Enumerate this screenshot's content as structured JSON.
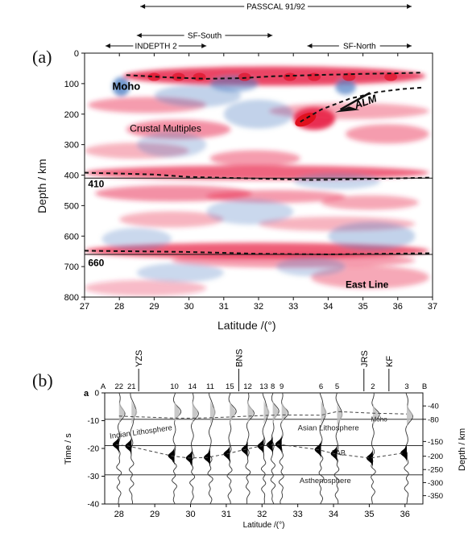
{
  "panel_a": {
    "label": "(a)",
    "segments": [
      {
        "label": "PASSCAL 91/92",
        "from_lat": 28.6,
        "to_lat": 36.4
      },
      {
        "label": "SF-South",
        "from_lat": 28.5,
        "to_lat": 32.4
      },
      {
        "label": "INDEPTH 2",
        "from_lat": 27.6,
        "to_lat": 30.5
      },
      {
        "label": "SF-North",
        "from_lat": 33.4,
        "to_lat": 36.4
      }
    ],
    "xlabel": "Latitude /(°)",
    "ylabel": "Depth / km",
    "xlim": [
      27,
      37
    ],
    "ylim": [
      0,
      800
    ],
    "xticks": [
      27,
      28,
      29,
      30,
      31,
      32,
      33,
      34,
      35,
      36,
      37
    ],
    "yticks": [
      0,
      100,
      200,
      300,
      400,
      500,
      600,
      700,
      800
    ],
    "annotations": {
      "moho": "Moho",
      "alm": "ALM",
      "crustal": "Crustal Multiples",
      "d410": "410",
      "d660": "660",
      "line_name": "East Line"
    },
    "reference_lines": [
      410,
      660
    ],
    "colors": {
      "positive": "#e8254a",
      "negative": "#4f7fc4"
    }
  },
  "panel_b": {
    "label": "(b)",
    "sublabel": "a",
    "end_left": "A",
    "end_right": "B",
    "stations": [
      {
        "id": "22",
        "lat": 28.0
      },
      {
        "id": "21",
        "lat": 28.35
      },
      {
        "id": "10",
        "lat": 29.55
      },
      {
        "id": "14",
        "lat": 30.05
      },
      {
        "id": "11",
        "lat": 30.55
      },
      {
        "id": "15",
        "lat": 31.1
      },
      {
        "id": "12",
        "lat": 31.6
      },
      {
        "id": "13",
        "lat": 32.05
      },
      {
        "id": "8",
        "lat": 32.3
      },
      {
        "id": "9",
        "lat": 32.55
      },
      {
        "id": "6",
        "lat": 33.65
      },
      {
        "id": "5",
        "lat": 34.1
      },
      {
        "id": "2",
        "lat": 35.1
      },
      {
        "id": "3",
        "lat": 36.05
      }
    ],
    "sutures": [
      {
        "label": "YZS",
        "lat": 28.55
      },
      {
        "label": "BNS",
        "lat": 31.35
      },
      {
        "label": "JRS",
        "lat": 34.85
      },
      {
        "label": "KF",
        "lat": 35.55
      }
    ],
    "xlabel": "Latitude /(°)",
    "ylabel_left": "Time / s",
    "ylabel_right": "Depth / km",
    "xlim": [
      27.6,
      36.5
    ],
    "xticks": [
      28,
      29,
      30,
      31,
      32,
      33,
      34,
      35,
      36
    ],
    "time_lim": [
      0,
      -40
    ],
    "time_ticks": [
      0,
      -10,
      -20,
      -30,
      -40
    ],
    "depth_ticks": [
      -40,
      -80,
      -150,
      -200,
      -250,
      -300,
      -350
    ],
    "annotations": {
      "indian": "Indian Lithosphere",
      "asian": "Asian Lithosphere",
      "lab": "LAB",
      "moho": "Moho",
      "astheno": "Asthenosphere"
    },
    "reference_times": [
      -9.5,
      -19,
      -29.5
    ]
  }
}
